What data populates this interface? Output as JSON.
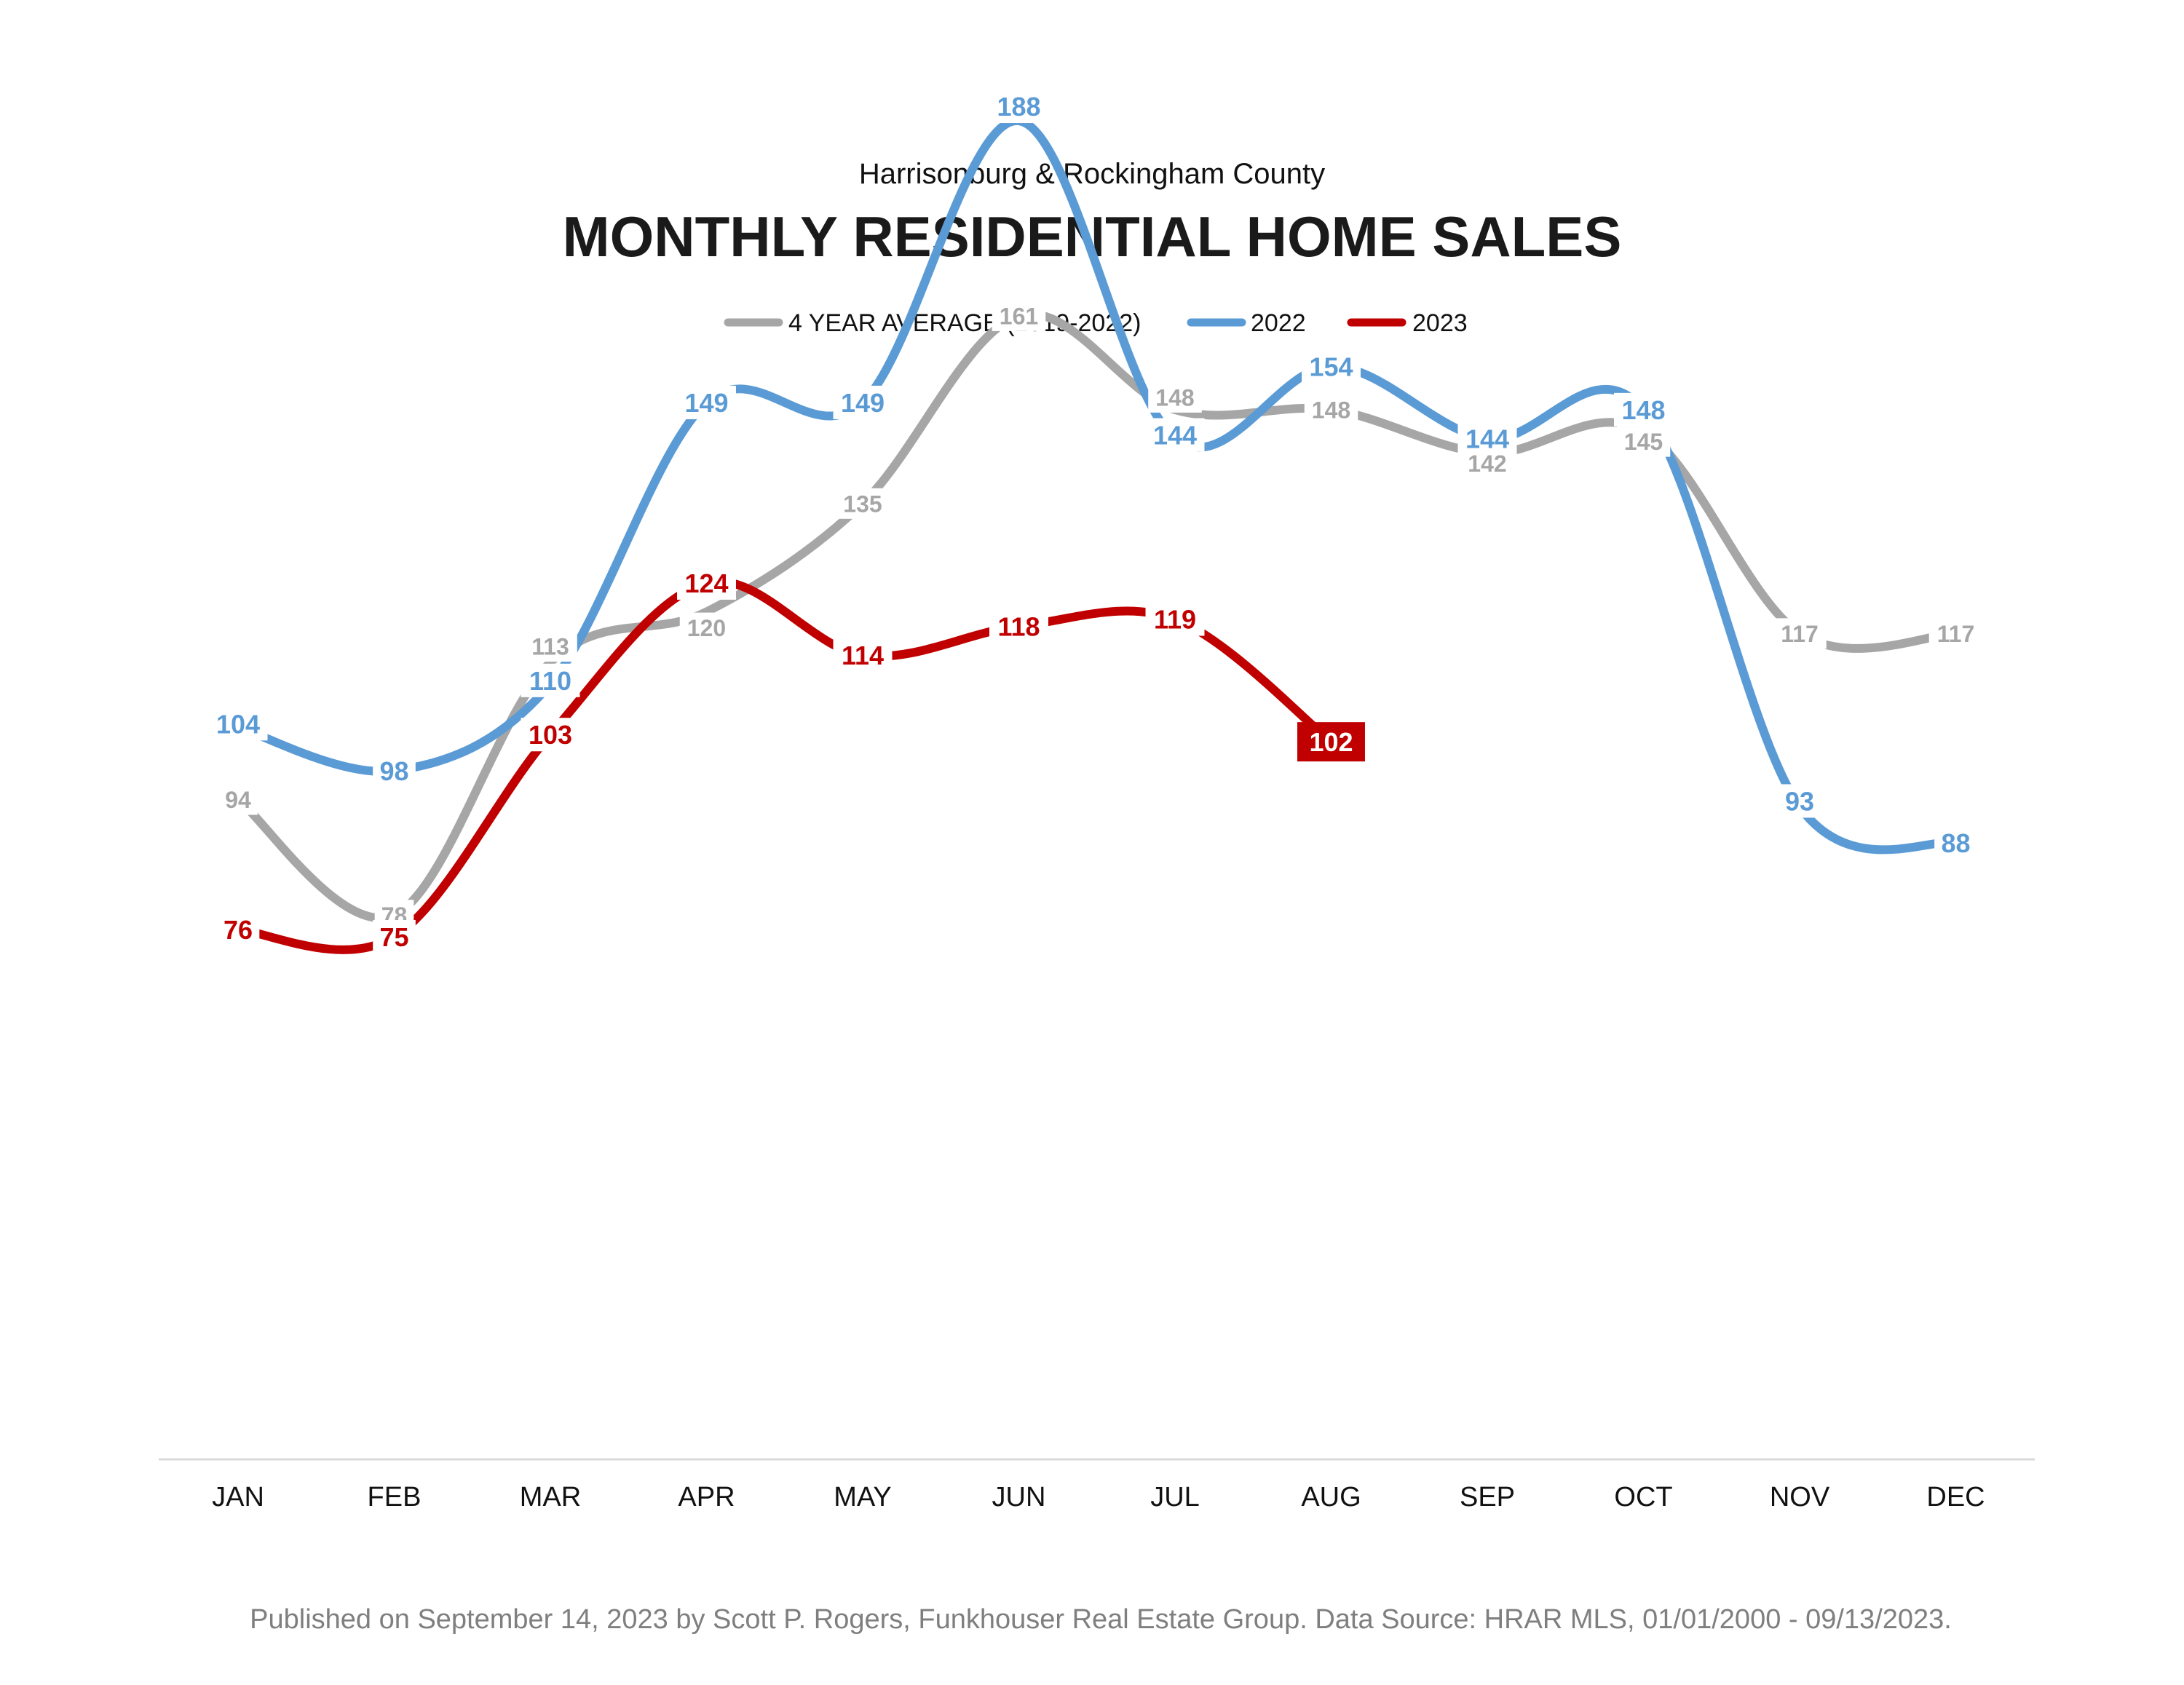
{
  "chart_data": {
    "type": "line",
    "subtitle": "Harrisonburg & Rockingham County",
    "title": "MONTHLY RESIDENTIAL HOME SALES",
    "categories": [
      "JAN",
      "FEB",
      "MAR",
      "APR",
      "MAY",
      "JUN",
      "JUL",
      "AUG",
      "SEP",
      "OCT",
      "NOV",
      "DEC"
    ],
    "series": [
      {
        "name": "4 YEAR AVERAGE (2019-2022)",
        "color": "#a6a6a6",
        "values": [
          94,
          78,
          113,
          120,
          135,
          161,
          148,
          148,
          142,
          145,
          117,
          117
        ]
      },
      {
        "name": "2022",
        "color": "#5b9bd5",
        "values": [
          104,
          98,
          110,
          149,
          149,
          188,
          144,
          154,
          144,
          148,
          93,
          88
        ]
      },
      {
        "name": "2023",
        "color": "#c00000",
        "values": [
          76,
          75,
          103,
          124,
          114,
          118,
          119,
          102,
          null,
          null,
          null,
          null
        ],
        "highlight_last": true
      }
    ],
    "ylim": [
      0,
      200
    ],
    "grid": false,
    "legend": "top-center",
    "xlabel": "",
    "ylabel": "",
    "footer": "Published on September 14, 2023 by Scott P. Rogers, Funkhouser Real Estate Group. Data Source: HRAR MLS, 01/01/2000 - 09/13/2023."
  }
}
